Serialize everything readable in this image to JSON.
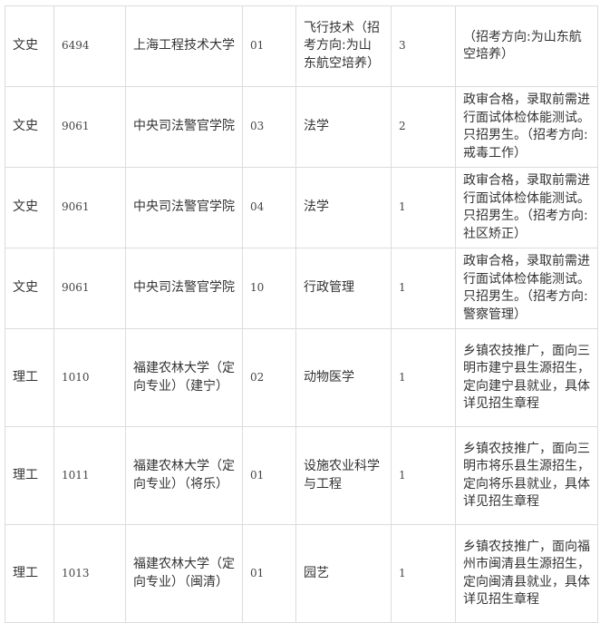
{
  "rows": [
    {
      "category": "文史",
      "school_code": "6494",
      "school": "上海工程技术大学",
      "major_code": "01",
      "major": "飞行技术（招考方向:为山东航空培养）",
      "count": "3",
      "notes": "（招考方向:为山东航空培养）"
    },
    {
      "category": "文史",
      "school_code": "9061",
      "school": "中央司法警官学院",
      "major_code": "03",
      "major": "法学",
      "count": "2",
      "notes": "政审合格，录取前需进行面试体检体能测试。只招男生。（招考方向:戒毒工作）"
    },
    {
      "category": "文史",
      "school_code": "9061",
      "school": "中央司法警官学院",
      "major_code": "04",
      "major": "法学",
      "count": "1",
      "notes": "政审合格，录取前需进行面试体检体能测试。只招男生。（招考方向:社区矫正）"
    },
    {
      "category": "文史",
      "school_code": "9061",
      "school": "中央司法警官学院",
      "major_code": "10",
      "major": "行政管理",
      "count": "1",
      "notes": "政审合格，录取前需进行面试体检体能测试。只招男生。（招考方向:警察管理）"
    },
    {
      "category": "理工",
      "school_code": "1010",
      "school": "福建农林大学（定向专业）（建宁）",
      "major_code": "02",
      "major": "动物医学",
      "count": "1",
      "notes": "乡镇农技推广，面向三明市建宁县生源招生，定向建宁县就业，具体详见招生章程"
    },
    {
      "category": "理工",
      "school_code": "1011",
      "school": "福建农林大学（定向专业）（将乐）",
      "major_code": "01",
      "major": "设施农业科学与工程",
      "count": "1",
      "notes": "乡镇农技推广，面向三明市将乐县生源招生，定向将乐县就业，具体详见招生章程"
    },
    {
      "category": "理工",
      "school_code": "1013",
      "school": "福建农林大学（定向专业）（闽清）",
      "major_code": "01",
      "major": "园艺",
      "count": "1",
      "notes": "乡镇农技推广，面向福州市闽清县生源招生，定向闽清县就业，具体详见招生章程"
    }
  ]
}
